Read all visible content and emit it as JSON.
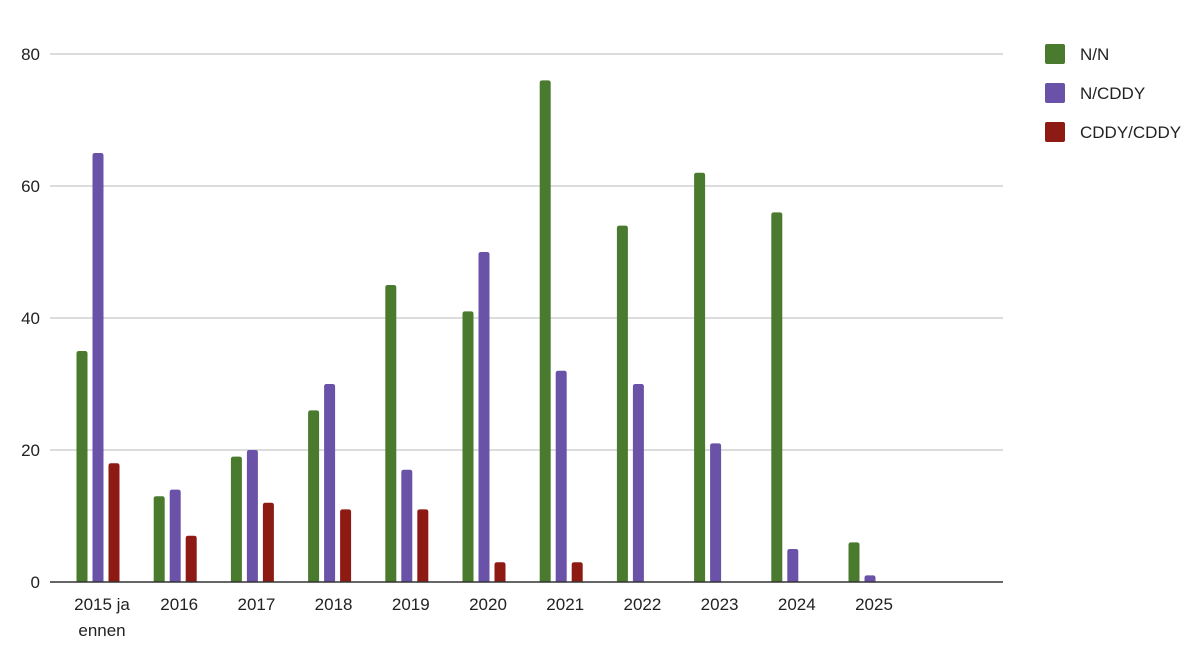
{
  "chart_data": {
    "type": "bar",
    "categories": [
      "2015 ja ennen",
      "2016",
      "2017",
      "2018",
      "2019",
      "2020",
      "2021",
      "2022",
      "2023",
      "2024",
      "2025"
    ],
    "series": [
      {
        "name": "N/N",
        "color": "#4a7a2e",
        "values": [
          35,
          13,
          19,
          26,
          45,
          41,
          76,
          54,
          62,
          56,
          6
        ]
      },
      {
        "name": "N/CDDY",
        "color": "#6a52a8",
        "values": [
          65,
          14,
          20,
          30,
          17,
          50,
          32,
          30,
          21,
          5,
          1
        ]
      },
      {
        "name": "CDDY/CDDY",
        "color": "#8e1a14",
        "values": [
          18,
          7,
          12,
          11,
          11,
          3,
          3,
          0,
          0,
          0,
          0
        ]
      }
    ],
    "yticks": [
      0,
      20,
      40,
      60,
      80
    ],
    "ylim": [
      0,
      80
    ],
    "grid": true,
    "legend_position": "top-right"
  }
}
